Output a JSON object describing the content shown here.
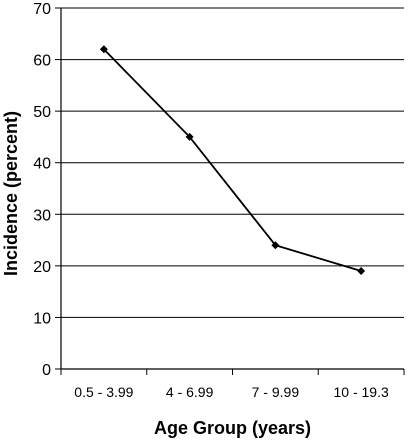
{
  "chart_data": {
    "type": "line",
    "title": "",
    "xlabel": "Age Group (years)",
    "ylabel": "Incidence (percent)",
    "categories": [
      "0.5 - 3.99",
      "4 - 6.99",
      "7 - 9.99",
      "10 - 19.3"
    ],
    "series": [
      {
        "values": [
          62,
          45,
          24,
          19
        ],
        "color": "#000000",
        "marker": "diamond"
      }
    ],
    "ylim": [
      0,
      70
    ],
    "yticks": [
      0,
      10,
      20,
      30,
      40,
      50,
      60,
      70
    ],
    "grid": true,
    "grid_axis": "y",
    "legend": "none"
  }
}
